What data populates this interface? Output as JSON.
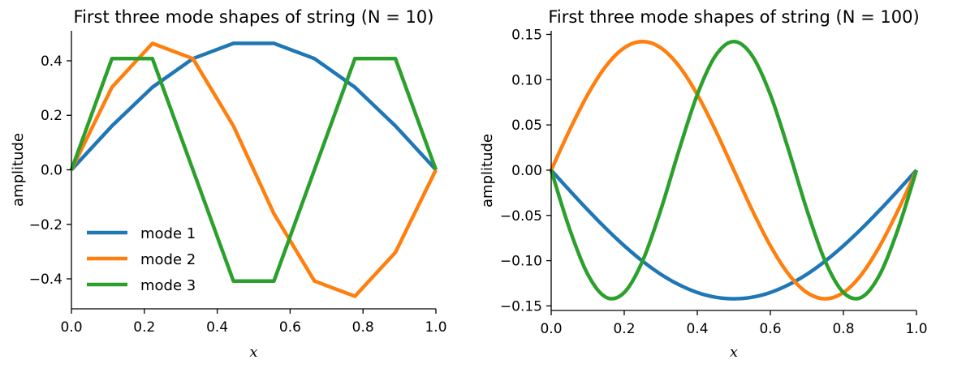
{
  "chart_data": [
    {
      "type": "line",
      "title": "First three mode shapes of string (N = 10)",
      "xlabel": "x",
      "ylabel": "amplitude",
      "xlim": [
        0,
        1
      ],
      "ylim": [
        -0.51,
        0.51
      ],
      "xticks": [
        "0.0",
        "0.2",
        "0.4",
        "0.6",
        "0.8",
        "1.0"
      ],
      "xtick_values": [
        0,
        0.2,
        0.4,
        0.6,
        0.8,
        1.0
      ],
      "yticks": [
        "−0.4",
        "−0.2",
        "0.0",
        "0.2",
        "0.4"
      ],
      "ytick_values": [
        -0.4,
        -0.2,
        0,
        0.2,
        0.4
      ],
      "grid": false,
      "legend": "lower-left",
      "x": [
        0,
        0.1111,
        0.2222,
        0.3333,
        0.4444,
        0.5556,
        0.6667,
        0.7778,
        0.8889,
        1.0
      ],
      "series": [
        {
          "name": "mode 1",
          "color": "#1f77b4",
          "values": [
            0,
            0.161,
            0.303,
            0.408,
            0.464,
            0.464,
            0.408,
            0.303,
            0.161,
            0
          ]
        },
        {
          "name": "mode 2",
          "color": "#ff7f0e",
          "values": [
            0,
            0.303,
            0.464,
            0.408,
            0.161,
            -0.161,
            -0.408,
            -0.464,
            -0.303,
            0
          ]
        },
        {
          "name": "mode 3",
          "color": "#2ca02c",
          "values": [
            0,
            0.408,
            0.408,
            0,
            -0.408,
            -0.408,
            0,
            0.408,
            0.408,
            0
          ]
        }
      ]
    },
    {
      "type": "line",
      "title": "First three mode shapes of string (N = 100)",
      "xlabel": "x",
      "ylabel": "amplitude",
      "xlim": [
        0,
        1
      ],
      "ylim": [
        -0.155,
        0.154
      ],
      "xticks": [
        "0.0",
        "0.2",
        "0.4",
        "0.6",
        "0.8",
        "1.0"
      ],
      "xtick_values": [
        0,
        0.2,
        0.4,
        0.6,
        0.8,
        1.0
      ],
      "yticks": [
        "−0.15",
        "−0.10",
        "−0.05",
        "0.00",
        "0.05",
        "0.10",
        "0.15"
      ],
      "ytick_values": [
        -0.15,
        -0.1,
        -0.05,
        0,
        0.05,
        0.1,
        0.15
      ],
      "grid": false,
      "legend": "none",
      "x": [
        0,
        0.05,
        0.1,
        0.15,
        0.2,
        0.25,
        0.3,
        0.35,
        0.4,
        0.45,
        0.5,
        0.55,
        0.6,
        0.65,
        0.7,
        0.75,
        0.8,
        0.85,
        0.9,
        0.95,
        1.0
      ],
      "series": [
        {
          "name": "mode 1",
          "color": "#1f77b4",
          "values": [
            0,
            -0.0222,
            -0.0439,
            -0.0645,
            -0.0835,
            -0.1005,
            -0.115,
            -0.1266,
            -0.1352,
            -0.1404,
            -0.1421,
            -0.1404,
            -0.1352,
            -0.1266,
            -0.115,
            -0.1005,
            -0.0835,
            -0.0645,
            -0.0439,
            -0.0222,
            0
          ]
        },
        {
          "name": "mode 2",
          "color": "#ff7f0e",
          "values": [
            0,
            0.0439,
            0.0835,
            0.115,
            0.1352,
            0.1421,
            0.1352,
            0.115,
            0.0835,
            0.0439,
            0,
            -0.0439,
            -0.0835,
            -0.115,
            -0.1352,
            -0.1421,
            -0.1352,
            -0.115,
            -0.0835,
            -0.0439,
            0
          ]
        },
        {
          "name": "mode 3",
          "color": "#2ca02c",
          "values": [
            0,
            -0.0645,
            -0.115,
            -0.1404,
            -0.1352,
            -0.1005,
            -0.0439,
            0.0222,
            0.0835,
            0.1266,
            0.1421,
            0.1266,
            0.0835,
            0.0222,
            -0.0439,
            -0.1005,
            -0.1352,
            -0.1404,
            -0.115,
            -0.0645,
            0
          ]
        }
      ]
    }
  ]
}
